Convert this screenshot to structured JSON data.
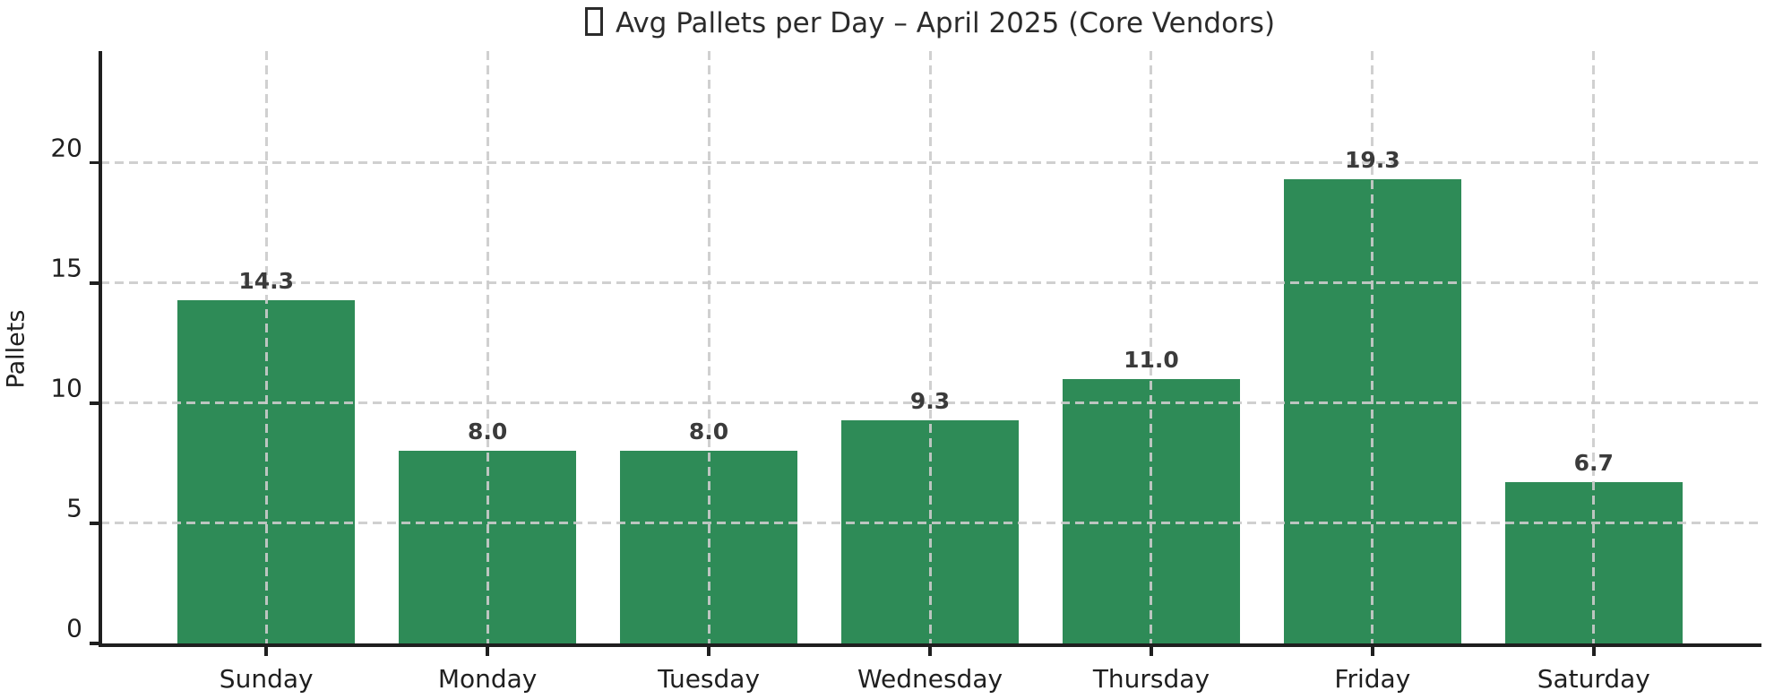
{
  "title": {
    "glyph": "missing-emoji-box",
    "text": "Avg Pallets per Day – April 2025 (Core Vendors)"
  },
  "chart_data": {
    "type": "bar",
    "title": "Avg Pallets per Day – April 2025 (Core Vendors)",
    "categories": [
      "Sunday",
      "Monday",
      "Tuesday",
      "Wednesday",
      "Thursday",
      "Friday",
      "Saturday"
    ],
    "values": [
      14.3,
      8.0,
      8.0,
      9.3,
      11.0,
      19.3,
      6.7
    ],
    "value_labels": [
      "14.3",
      "8.0",
      "8.0",
      "9.3",
      "11.0",
      "19.3",
      "6.7"
    ],
    "xlabel": "",
    "ylabel": "Pallets",
    "yticks": [
      0,
      5,
      10,
      15,
      20
    ],
    "ylim": [
      0,
      24.65
    ],
    "bar_color": "#2e8b57",
    "grid": {
      "visible": true,
      "horizontal": true,
      "vertical": true,
      "style": "dashed",
      "color": "#cbcbcb"
    },
    "legend": "none",
    "bar_width_fraction": 0.8,
    "x_range": [
      -0.75,
      6.75
    ]
  }
}
